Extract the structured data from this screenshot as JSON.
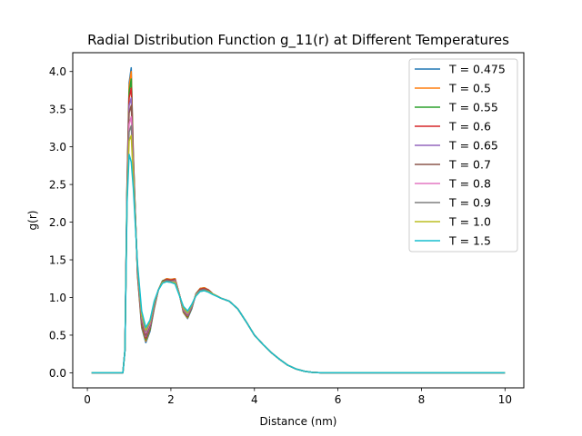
{
  "chart_data": {
    "type": "line",
    "title": "Radial Distribution Function g_11(r) at Different Temperatures",
    "xlabel": "Distance (nm)",
    "ylabel": "g(r)",
    "xlim": [
      -0.35,
      10.45
    ],
    "ylim": [
      -0.2,
      4.25
    ],
    "xticks": [
      0,
      2,
      4,
      6,
      8,
      10
    ],
    "yticks": [
      0.0,
      0.5,
      1.0,
      1.5,
      2.0,
      2.5,
      3.0,
      3.5,
      4.0
    ],
    "xtick_labels": [
      "0",
      "2",
      "4",
      "6",
      "8",
      "10"
    ],
    "ytick_labels": [
      "0.0",
      "0.5",
      "1.0",
      "1.5",
      "2.0",
      "2.5",
      "3.0",
      "3.5",
      "4.0"
    ],
    "grid": false,
    "legend_position": "top-right",
    "x": [
      0.1,
      0.5,
      0.85,
      0.9,
      0.95,
      1.0,
      1.05,
      1.1,
      1.2,
      1.3,
      1.4,
      1.5,
      1.6,
      1.7,
      1.8,
      1.9,
      2.0,
      2.1,
      2.2,
      2.3,
      2.4,
      2.5,
      2.6,
      2.7,
      2.8,
      2.9,
      3.0,
      3.2,
      3.4,
      3.6,
      3.8,
      4.0,
      4.2,
      4.4,
      4.6,
      4.8,
      5.0,
      5.2,
      5.4,
      5.6,
      6.0,
      7.0,
      8.0,
      9.0,
      10.0
    ],
    "series": [
      {
        "name": "T = 0.475",
        "color": "#1f77b4",
        "values": [
          0,
          0,
          0,
          0.3,
          2.5,
          3.85,
          4.05,
          2.9,
          1.3,
          0.6,
          0.4,
          0.55,
          0.85,
          1.1,
          1.22,
          1.25,
          1.24,
          1.25,
          1.05,
          0.8,
          0.72,
          0.85,
          1.05,
          1.12,
          1.13,
          1.1,
          1.05,
          0.99,
          0.95,
          0.85,
          0.68,
          0.5,
          0.38,
          0.27,
          0.18,
          0.1,
          0.05,
          0.02,
          0.005,
          0,
          0,
          0,
          0,
          0,
          0
        ]
      },
      {
        "name": "T = 0.5",
        "color": "#ff7f0e",
        "values": [
          0,
          0,
          0,
          0.3,
          2.5,
          3.8,
          4.0,
          2.88,
          1.3,
          0.62,
          0.42,
          0.57,
          0.86,
          1.1,
          1.22,
          1.25,
          1.24,
          1.25,
          1.05,
          0.8,
          0.73,
          0.86,
          1.05,
          1.12,
          1.13,
          1.1,
          1.05,
          0.99,
          0.95,
          0.85,
          0.68,
          0.5,
          0.38,
          0.27,
          0.18,
          0.1,
          0.05,
          0.02,
          0.005,
          0,
          0,
          0,
          0,
          0,
          0
        ]
      },
      {
        "name": "T = 0.55",
        "color": "#2ca02c",
        "values": [
          0,
          0,
          0,
          0.3,
          2.45,
          3.72,
          3.9,
          2.85,
          1.32,
          0.64,
          0.44,
          0.58,
          0.87,
          1.1,
          1.22,
          1.24,
          1.23,
          1.24,
          1.05,
          0.81,
          0.74,
          0.86,
          1.05,
          1.11,
          1.12,
          1.1,
          1.05,
          0.99,
          0.95,
          0.85,
          0.68,
          0.5,
          0.38,
          0.27,
          0.18,
          0.1,
          0.05,
          0.02,
          0.005,
          0,
          0,
          0,
          0,
          0,
          0
        ]
      },
      {
        "name": "T = 0.6",
        "color": "#d62728",
        "values": [
          0,
          0,
          0,
          0.3,
          2.42,
          3.65,
          3.78,
          2.8,
          1.33,
          0.66,
          0.46,
          0.6,
          0.88,
          1.1,
          1.21,
          1.24,
          1.23,
          1.24,
          1.05,
          0.82,
          0.75,
          0.87,
          1.04,
          1.11,
          1.12,
          1.1,
          1.05,
          0.99,
          0.95,
          0.85,
          0.68,
          0.5,
          0.38,
          0.27,
          0.18,
          0.1,
          0.05,
          0.02,
          0.005,
          0,
          0,
          0,
          0,
          0,
          0
        ]
      },
      {
        "name": "T = 0.65",
        "color": "#9467bd",
        "values": [
          0,
          0,
          0,
          0.3,
          2.4,
          3.55,
          3.65,
          2.75,
          1.35,
          0.68,
          0.48,
          0.61,
          0.89,
          1.1,
          1.21,
          1.23,
          1.22,
          1.23,
          1.05,
          0.82,
          0.76,
          0.87,
          1.04,
          1.1,
          1.11,
          1.09,
          1.05,
          0.99,
          0.95,
          0.85,
          0.68,
          0.5,
          0.38,
          0.27,
          0.18,
          0.1,
          0.05,
          0.02,
          0.005,
          0,
          0,
          0,
          0,
          0,
          0
        ]
      },
      {
        "name": "T = 0.7",
        "color": "#8c564b",
        "values": [
          0,
          0,
          0,
          0.3,
          2.38,
          3.45,
          3.55,
          2.72,
          1.36,
          0.7,
          0.5,
          0.63,
          0.9,
          1.1,
          1.21,
          1.23,
          1.22,
          1.23,
          1.05,
          0.83,
          0.77,
          0.88,
          1.04,
          1.1,
          1.11,
          1.09,
          1.05,
          0.99,
          0.95,
          0.85,
          0.68,
          0.5,
          0.38,
          0.27,
          0.18,
          0.1,
          0.05,
          0.02,
          0.005,
          0,
          0,
          0,
          0,
          0,
          0
        ]
      },
      {
        "name": "T = 0.8",
        "color": "#e377c2",
        "values": [
          0,
          0,
          0,
          0.3,
          2.35,
          3.3,
          3.4,
          2.68,
          1.38,
          0.73,
          0.53,
          0.65,
          0.91,
          1.1,
          1.2,
          1.22,
          1.21,
          1.22,
          1.05,
          0.84,
          0.78,
          0.89,
          1.04,
          1.09,
          1.1,
          1.08,
          1.05,
          0.99,
          0.95,
          0.85,
          0.68,
          0.5,
          0.38,
          0.27,
          0.18,
          0.1,
          0.05,
          0.02,
          0.005,
          0,
          0,
          0,
          0,
          0,
          0
        ]
      },
      {
        "name": "T = 0.9",
        "color": "#7f7f7f",
        "values": [
          0,
          0,
          0,
          0.3,
          2.32,
          3.2,
          3.28,
          2.62,
          1.4,
          0.75,
          0.55,
          0.67,
          0.92,
          1.1,
          1.2,
          1.22,
          1.21,
          1.21,
          1.04,
          0.85,
          0.79,
          0.89,
          1.03,
          1.09,
          1.1,
          1.08,
          1.05,
          0.99,
          0.95,
          0.85,
          0.68,
          0.5,
          0.38,
          0.27,
          0.18,
          0.1,
          0.05,
          0.02,
          0.005,
          0,
          0,
          0,
          0,
          0,
          0
        ]
      },
      {
        "name": "T = 1.0",
        "color": "#bcbd22",
        "values": [
          0,
          0,
          0,
          0.3,
          2.3,
          3.08,
          3.15,
          2.58,
          1.42,
          0.77,
          0.57,
          0.68,
          0.93,
          1.1,
          1.2,
          1.21,
          1.2,
          1.2,
          1.04,
          0.86,
          0.8,
          0.9,
          1.03,
          1.08,
          1.09,
          1.08,
          1.05,
          0.99,
          0.95,
          0.85,
          0.68,
          0.5,
          0.38,
          0.27,
          0.18,
          0.1,
          0.05,
          0.02,
          0.005,
          0,
          0,
          0,
          0,
          0,
          0
        ]
      },
      {
        "name": "T = 1.5",
        "color": "#17becf",
        "values": [
          0,
          0,
          0,
          0.3,
          2.25,
          2.9,
          2.8,
          2.45,
          1.45,
          0.82,
          0.6,
          0.7,
          0.95,
          1.1,
          1.19,
          1.21,
          1.2,
          1.18,
          1.03,
          0.88,
          0.82,
          0.91,
          1.02,
          1.08,
          1.09,
          1.07,
          1.04,
          0.99,
          0.95,
          0.85,
          0.68,
          0.5,
          0.38,
          0.27,
          0.18,
          0.1,
          0.05,
          0.02,
          0.005,
          0,
          0,
          0,
          0,
          0,
          0
        ]
      }
    ]
  }
}
